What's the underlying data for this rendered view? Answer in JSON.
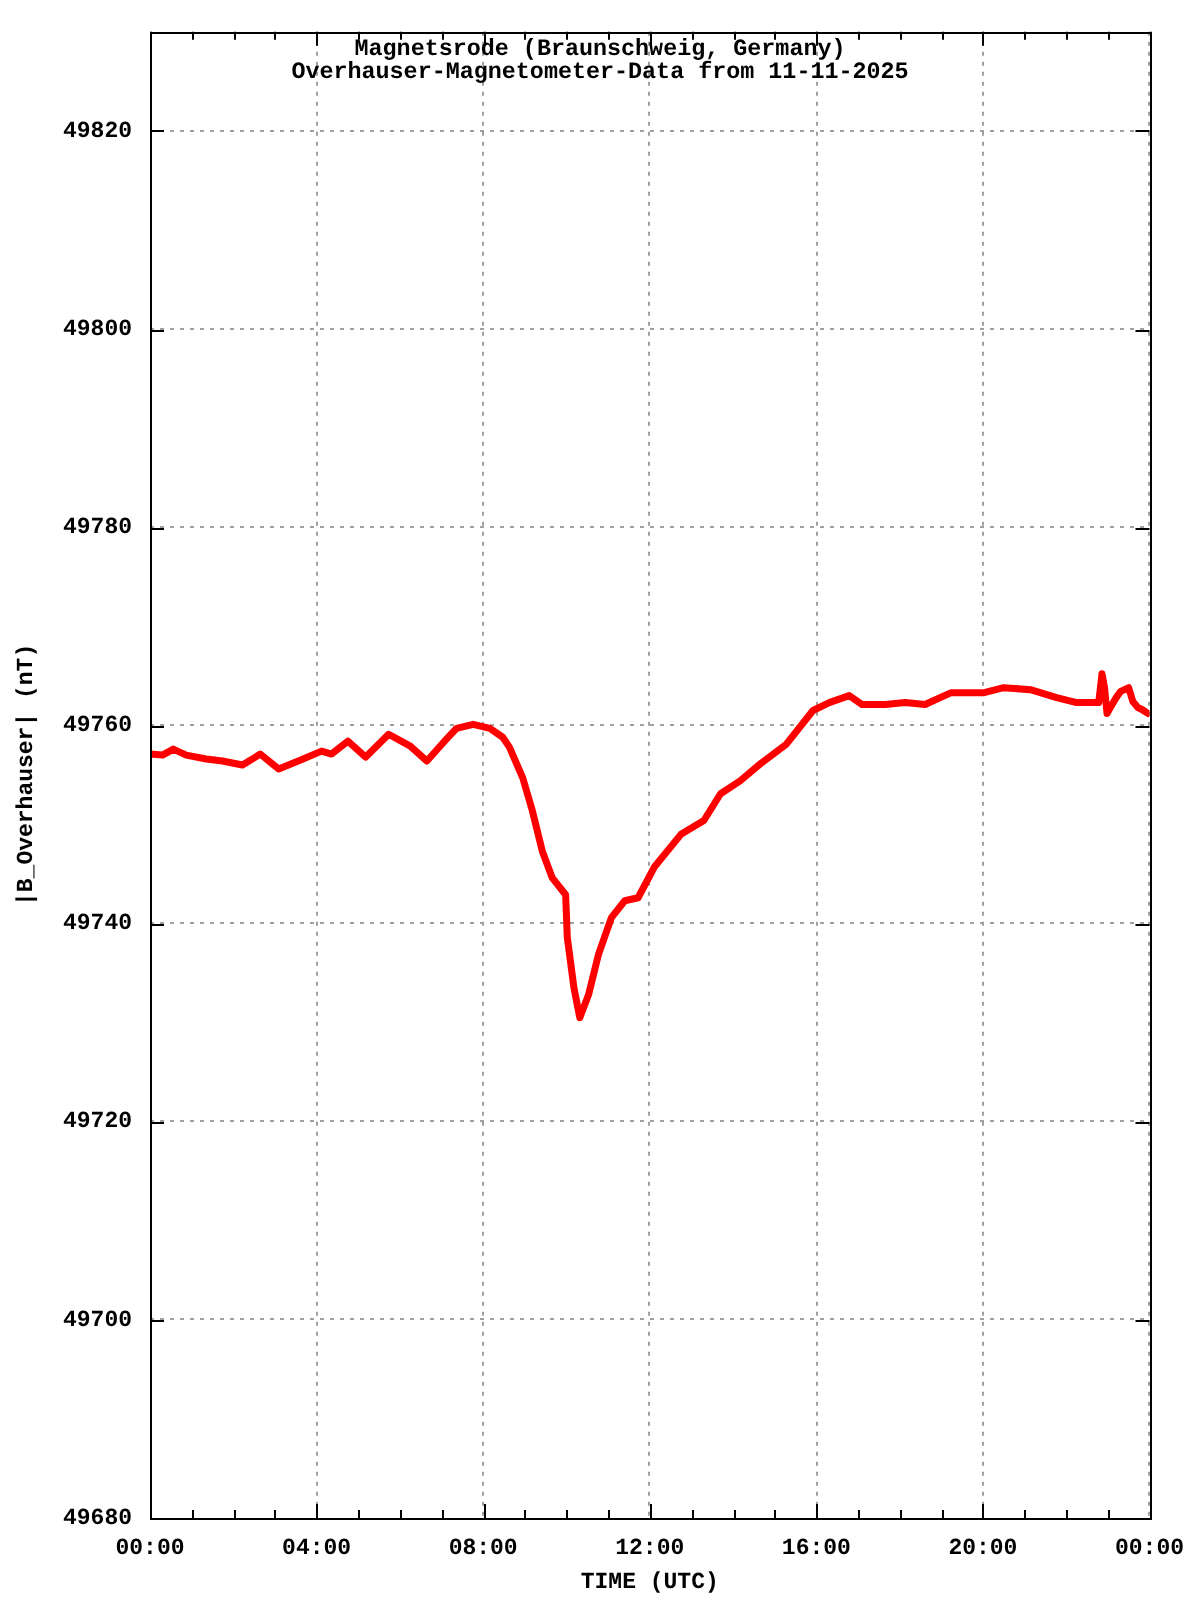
{
  "chart_data": {
    "type": "line",
    "title": "Magnetsrode (Braunschweig, Germany)",
    "subtitle": "Overhauser-Magnetometer-Data from 11-11-2025",
    "xlabel": "TIME (UTC)",
    "ylabel": "|B_Overhauser| (nT)",
    "x": [
      0,
      0.3,
      0.56,
      0.87,
      1.35,
      1.74,
      2.22,
      2.65,
      3.09,
      3.56,
      4.12,
      4.36,
      4.75,
      5.18,
      5.73,
      6.25,
      6.65,
      7.05,
      7.36,
      7.76,
      8.16,
      8.47,
      8.63,
      8.95,
      9.18,
      9.42,
      9.66,
      9.98,
      10.02,
      10.18,
      10.32,
      10.53,
      10.77,
      11.08,
      11.4,
      11.72,
      12.11,
      12.75,
      13.3,
      13.7,
      14.17,
      14.65,
      15.28,
      15.92,
      16.31,
      16.79,
      17.1,
      17.66,
      18.13,
      18.61,
      19.24,
      20.03,
      20.5,
      21.14,
      21.77,
      22.25,
      22.78,
      22.86,
      22.92,
      22.98,
      23.06,
      23.2,
      23.3,
      23.5,
      23.6,
      23.72,
      23.82,
      23.96
    ],
    "series": [
      {
        "color": "#ff0000",
        "values": [
          49757.1,
          49757.0,
          49757.6,
          49757.0,
          49756.6,
          49756.4,
          49756.0,
          49757.1,
          49755.6,
          49756.4,
          49757.4,
          49757.1,
          49758.4,
          49756.8,
          49759.1,
          49757.9,
          49756.4,
          49758.3,
          49759.7,
          49760.1,
          49759.7,
          49758.8,
          49757.8,
          49754.7,
          49751.4,
          49747.3,
          49744.6,
          49742.9,
          49738.6,
          49733.5,
          49730.5,
          49732.8,
          49736.9,
          49740.6,
          49742.3,
          49742.6,
          49745.7,
          49749.0,
          49750.4,
          49753.1,
          49754.4,
          49756.1,
          49758.1,
          49761.5,
          49762.3,
          49763.0,
          49762.1,
          49762.1,
          49762.3,
          49762.1,
          49763.3,
          49763.3,
          49763.8,
          49763.6,
          49762.8,
          49762.3,
          49762.3,
          49765.2,
          49763.8,
          49761.2,
          49761.8,
          49762.8,
          49763.4,
          49763.8,
          49762.4,
          49761.8,
          49761.6,
          49761.2
        ]
      }
    ],
    "xlim": [
      0,
      24
    ],
    "xticks": [
      {
        "value": 0,
        "label": "00:00"
      },
      {
        "value": 1,
        "label": null
      },
      {
        "value": 2,
        "label": null
      },
      {
        "value": 3,
        "label": null
      },
      {
        "value": 4,
        "label": "04:00"
      },
      {
        "value": 5,
        "label": null
      },
      {
        "value": 6,
        "label": null
      },
      {
        "value": 7,
        "label": null
      },
      {
        "value": 8,
        "label": "08:00"
      },
      {
        "value": 9,
        "label": null
      },
      {
        "value": 10,
        "label": null
      },
      {
        "value": 11,
        "label": null
      },
      {
        "value": 12,
        "label": "12:00"
      },
      {
        "value": 13,
        "label": null
      },
      {
        "value": 14,
        "label": null
      },
      {
        "value": 15,
        "label": null
      },
      {
        "value": 16,
        "label": "16:00"
      },
      {
        "value": 17,
        "label": null
      },
      {
        "value": 18,
        "label": null
      },
      {
        "value": 19,
        "label": null
      },
      {
        "value": 20,
        "label": "20:00"
      },
      {
        "value": 21,
        "label": null
      },
      {
        "value": 22,
        "label": null
      },
      {
        "value": 23,
        "label": null
      },
      {
        "value": 24,
        "label": "00:00"
      }
    ],
    "ylim": [
      49680,
      49830
    ],
    "yticks": [
      49680,
      49700,
      49720,
      49740,
      49760,
      49780,
      49800,
      49820
    ],
    "grid": true
  }
}
